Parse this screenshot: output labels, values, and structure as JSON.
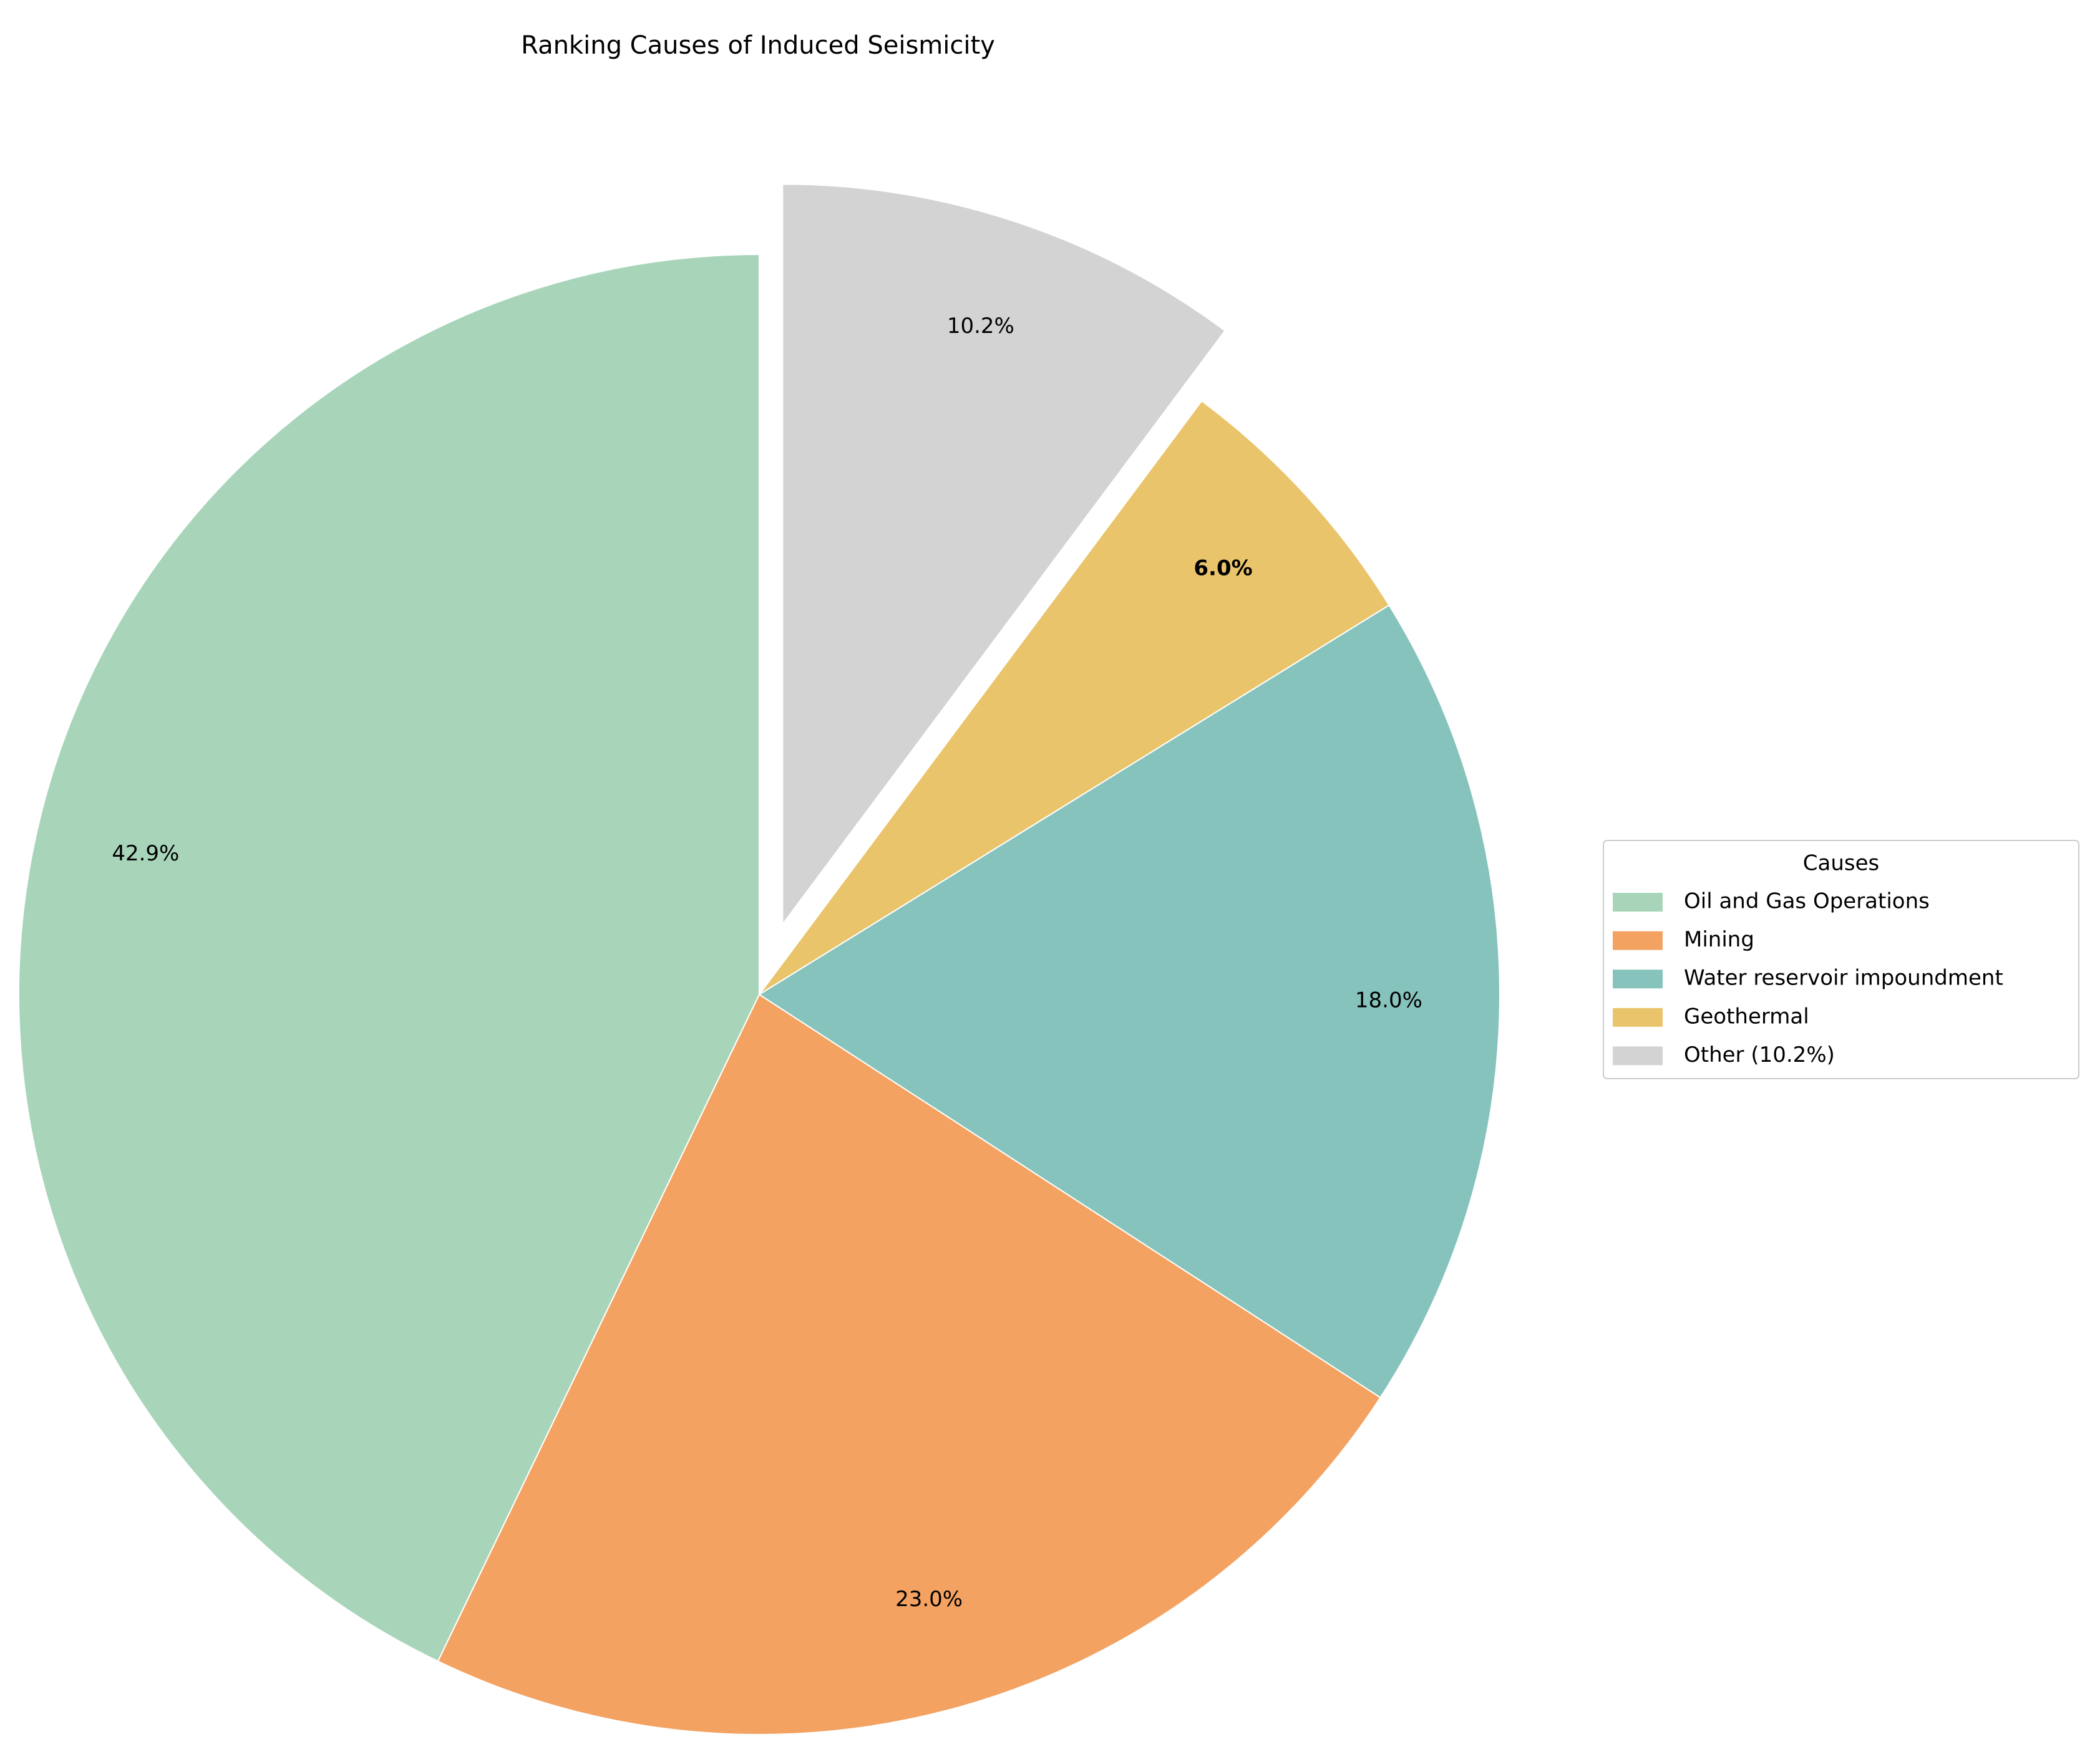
{
  "chart_data": {
    "type": "pie",
    "title": "Ranking Causes of Induced Seismicity",
    "categories": [
      "Oil and Gas Operations",
      "Mining",
      "Water reservoir impoundment",
      "Geothermal",
      "Other (10.2%)"
    ],
    "values": [
      42.9,
      23.0,
      18.0,
      6.0,
      10.2
    ],
    "value_labels": [
      "42.9%",
      "23.0%",
      "18.0%",
      "6.0%",
      "10.2%"
    ],
    "colors": [
      "#a8d5ba",
      "#f3a261",
      "#86c3bc",
      "#e9c46a",
      "#d3d3d3"
    ],
    "explode": [
      0,
      0,
      0,
      0,
      0.1
    ],
    "legend_title": "Causes",
    "legend": "right"
  }
}
